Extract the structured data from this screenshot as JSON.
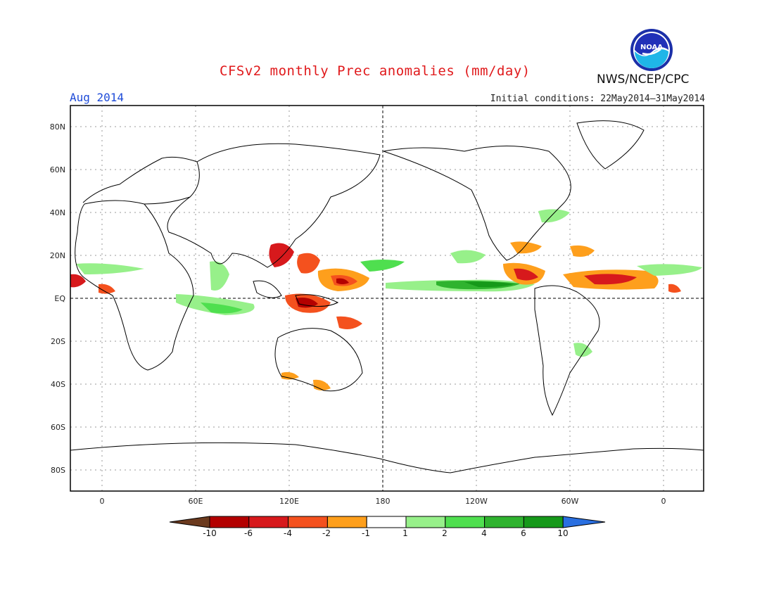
{
  "header": {
    "title": "CFSv2 monthly Prec anomalies (mm/day)",
    "month": "Aug 2014",
    "initial_conditions": "Initial conditions: 22May2014–31May2014",
    "agency": "NWS/NCEP/CPC",
    "logo_text": "NOAA"
  },
  "axes": {
    "lat_labels": [
      "80N",
      "60N",
      "40N",
      "20N",
      "EQ",
      "20S",
      "40S",
      "60S",
      "80S"
    ],
    "lon_labels": [
      "0",
      "60E",
      "120E",
      "180",
      "120W",
      "60W",
      "0"
    ]
  },
  "colorbar": {
    "labels": [
      "-10",
      "-6",
      "-4",
      "-2",
      "-1",
      "1",
      "2",
      "4",
      "6",
      "10"
    ],
    "colors": [
      "#6b3a1e",
      "#b30000",
      "#d7191c",
      "#f4511e",
      "#fe9f1c",
      "#ffffff",
      "#97f08a",
      "#4fdf4f",
      "#2fb32f",
      "#16991a",
      "#2a6fe0"
    ]
  },
  "colors": {
    "title": "#e0191b",
    "month": "#1e4bd8",
    "coast": "#000000",
    "grid": "#888888"
  }
}
